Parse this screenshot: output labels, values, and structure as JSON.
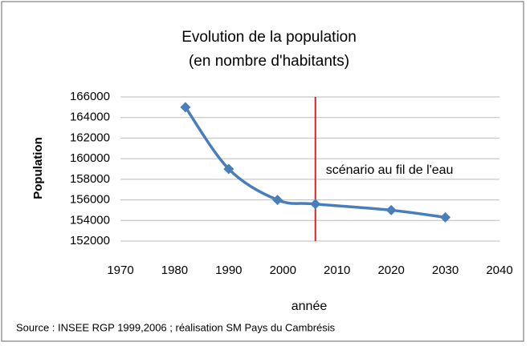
{
  "chart_data": {
    "type": "line",
    "title": [
      "Evolution de la population",
      "(en nombre d'habitants)"
    ],
    "x_label": "année",
    "y_label": "Population",
    "source": "Source : INSEE RGP 1999,2006 ; réalisation SM Pays du Cambrésis",
    "annotation": "scénario au fil de l'eau",
    "annotation_color": "#e02020",
    "vline_x": 2006,
    "x": [
      1982,
      1990,
      1999,
      2006,
      2020,
      2030
    ],
    "series": [
      {
        "name": "Population",
        "color": "#4a7ebb",
        "values": [
          165000,
          159000,
          156000,
          155600,
          155000,
          154300
        ]
      }
    ],
    "xlim": [
      1970,
      2040
    ],
    "xticks": [
      1970,
      1980,
      1990,
      2000,
      2010,
      2020,
      2030,
      2040
    ],
    "ylim": [
      152000,
      166000
    ],
    "yticks": [
      152000,
      154000,
      156000,
      158000,
      160000,
      162000,
      164000,
      166000
    ],
    "grid": true,
    "smooth": true
  }
}
